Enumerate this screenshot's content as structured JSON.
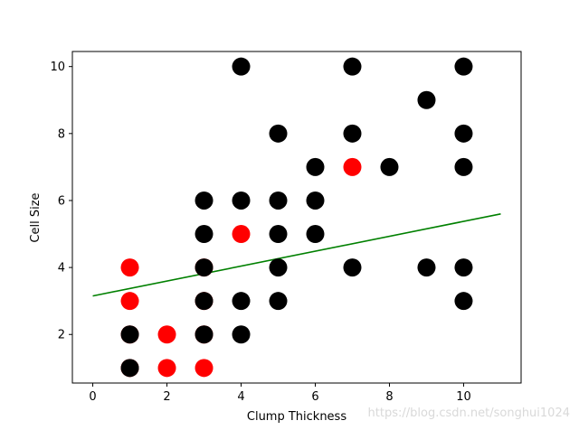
{
  "chart_data": {
    "type": "scatter",
    "xlabel": "Clump Thickness",
    "ylabel": "Cell Size",
    "xlim": [
      -0.55,
      11.55
    ],
    "ylim": [
      0.55,
      10.45
    ],
    "x_ticks": [
      0,
      2,
      4,
      6,
      8,
      10
    ],
    "y_ticks": [
      2,
      4,
      6,
      8,
      10
    ],
    "grid": false,
    "colors": {
      "red_series": "#ff0000",
      "black_series": "#000000",
      "line": "#008000"
    },
    "series": [
      {
        "color": "#ff0000",
        "points": [
          [
            1,
            4
          ],
          [
            1,
            3
          ],
          [
            1,
            2
          ],
          [
            1,
            1
          ],
          [
            2,
            2
          ],
          [
            2,
            1
          ],
          [
            3,
            4
          ],
          [
            3,
            3
          ],
          [
            3,
            2
          ],
          [
            3,
            1
          ],
          [
            4,
            5
          ],
          [
            7,
            7
          ]
        ]
      },
      {
        "color": "#000000",
        "points": [
          [
            4,
            10
          ],
          [
            7,
            10
          ],
          [
            10,
            10
          ],
          [
            9,
            9
          ],
          [
            5,
            8
          ],
          [
            7,
            8
          ],
          [
            10,
            8
          ],
          [
            6,
            7
          ],
          [
            8,
            7
          ],
          [
            10,
            7
          ],
          [
            3,
            6
          ],
          [
            4,
            6
          ],
          [
            5,
            6
          ],
          [
            6,
            6
          ],
          [
            3,
            5
          ],
          [
            5,
            5
          ],
          [
            6,
            5
          ],
          [
            3,
            4
          ],
          [
            5,
            4
          ],
          [
            7,
            4
          ],
          [
            9,
            4
          ],
          [
            10,
            4
          ],
          [
            3,
            3
          ],
          [
            4,
            3
          ],
          [
            5,
            3
          ],
          [
            10,
            3
          ],
          [
            1,
            2
          ],
          [
            3,
            2
          ],
          [
            4,
            2
          ],
          [
            1,
            1
          ]
        ]
      }
    ],
    "lines": [
      {
        "color": "#008000",
        "x": [
          0,
          11
        ],
        "y": [
          3.15,
          5.6
        ]
      }
    ]
  },
  "watermark": "https://blog.csdn.net/songhui1024"
}
